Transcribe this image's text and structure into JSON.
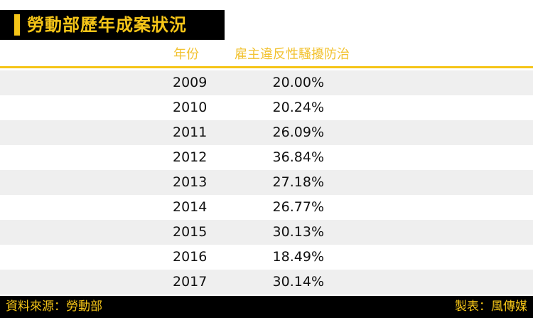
{
  "title": "勞動部歷年成案狀況",
  "accent_color": "#f5c518",
  "columns": {
    "year": "年份",
    "rate": "雇主違反性騷擾防治"
  },
  "footer": {
    "source": "資料來源：勞動部",
    "credit": "製表：風傳媒"
  },
  "chart_data": {
    "type": "table",
    "title": "勞動部歷年成案狀況",
    "columns": [
      "年份",
      "雇主違反性騷擾防治"
    ],
    "rows": [
      [
        "2009",
        "20.00%"
      ],
      [
        "2010",
        "20.24%"
      ],
      [
        "2011",
        "26.09%"
      ],
      [
        "2012",
        "36.84%"
      ],
      [
        "2013",
        "27.18%"
      ],
      [
        "2014",
        "26.77%"
      ],
      [
        "2015",
        "30.13%"
      ],
      [
        "2016",
        "18.49%"
      ],
      [
        "2017",
        "30.14%"
      ]
    ]
  }
}
